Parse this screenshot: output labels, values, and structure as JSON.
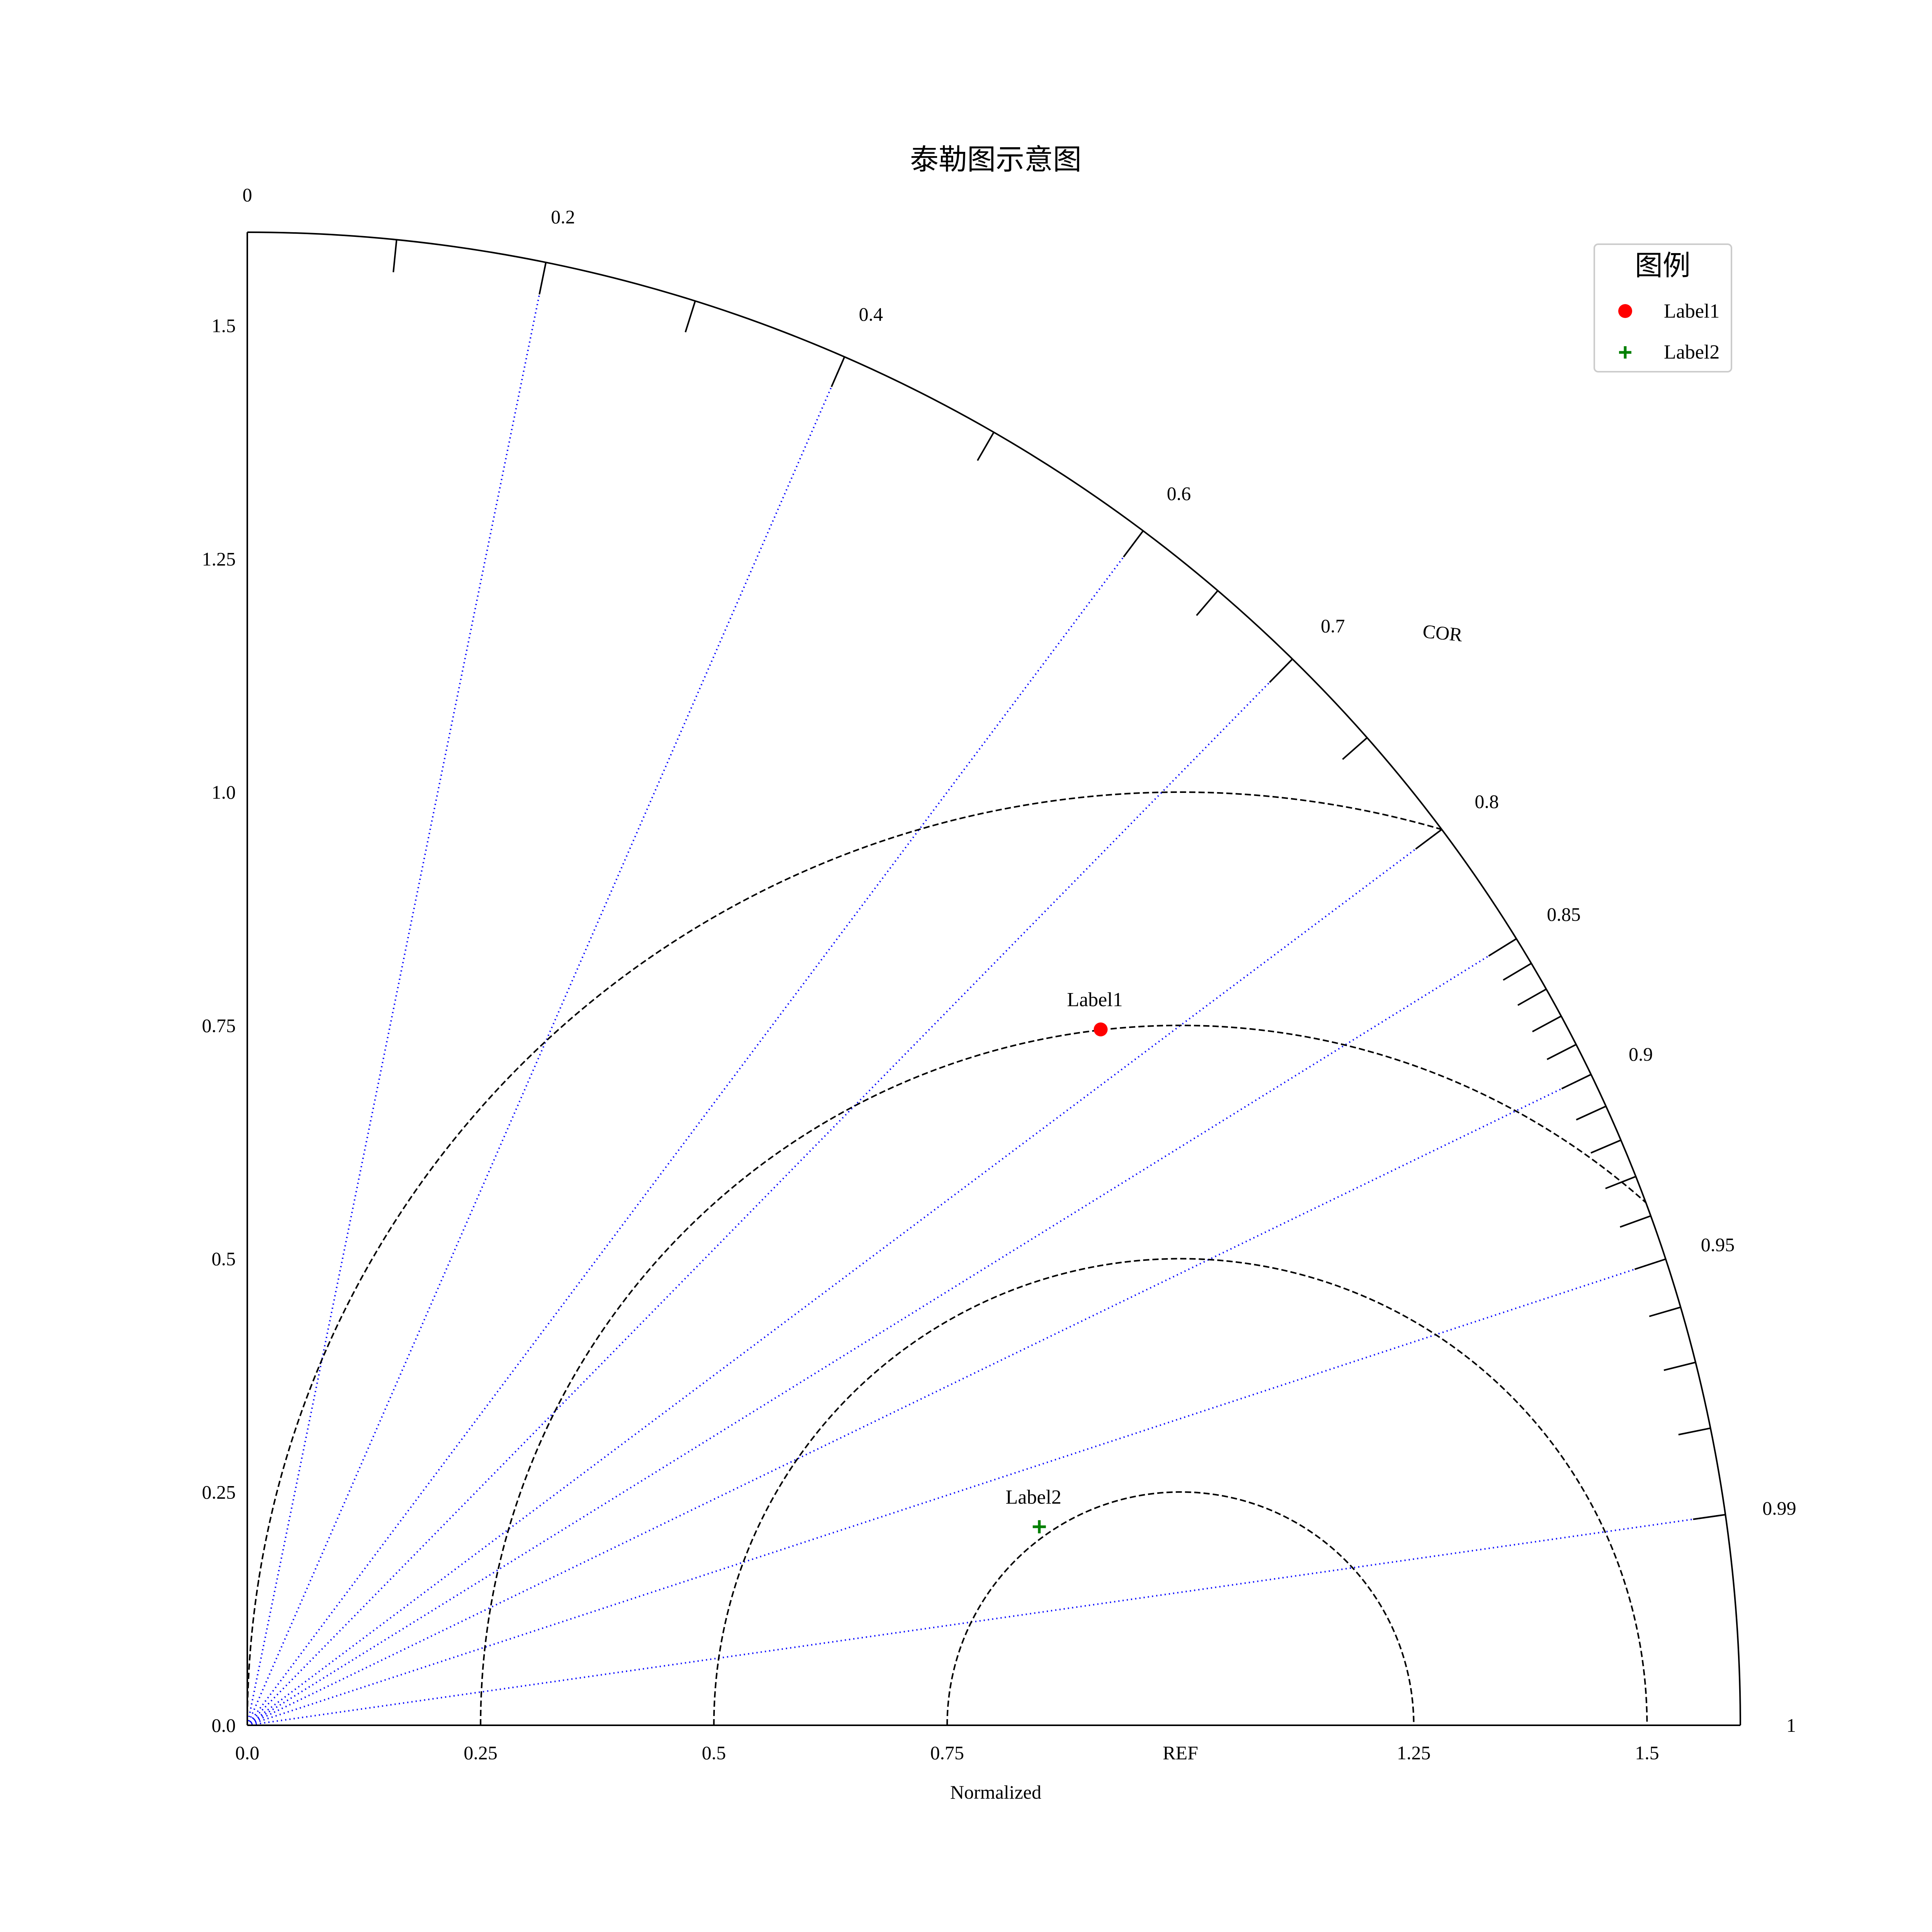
{
  "chart_data": {
    "type": "scatter",
    "subtype": "taylor-diagram",
    "title": "泰勒图示意图",
    "xlabel": "Normalized",
    "angle_label": "COR",
    "ref_label": "REF",
    "ref_std": 1.0,
    "std_max": 1.6,
    "std_ticks": [
      0.0,
      0.25,
      0.5,
      0.75,
      1.25,
      1.5
    ],
    "std_tick_labels": [
      "0.0",
      "0.25",
      "0.5",
      "0.75",
      "1.25",
      "1.5"
    ],
    "y_ticks": [
      0.0,
      0.25,
      0.5,
      0.75,
      1.0,
      1.25,
      1.5
    ],
    "y_tick_labels": [
      "0.0",
      "0.25",
      "0.5",
      "0.75",
      "1.0",
      "1.25",
      "1.5"
    ],
    "cor_endpoints": [
      {
        "value": 0,
        "label": "0"
      },
      {
        "value": 1,
        "label": "1"
      }
    ],
    "cor_labeled_ticks": [
      0.2,
      0.4,
      0.6,
      0.7,
      0.8,
      0.85,
      0.9,
      0.95,
      0.99
    ],
    "cor_tick_labels": [
      "0.2",
      "0.4",
      "0.6",
      "0.7",
      "0.8",
      "0.85",
      "0.9",
      "0.95",
      "0.99"
    ],
    "cor_minor_ticks": [
      0.1,
      0.3,
      0.5,
      0.65,
      0.75,
      0.86,
      0.87,
      0.88,
      0.89,
      0.91,
      0.92,
      0.93,
      0.94,
      0.96,
      0.97,
      0.98
    ],
    "cor_lines": [
      0.2,
      0.4,
      0.6,
      0.7,
      0.8,
      0.85,
      0.9,
      0.95,
      0.99
    ],
    "rms_circles": [
      0.25,
      0.5,
      0.75,
      1.0
    ],
    "series": [
      {
        "name": "Label1",
        "cor": 0.775,
        "std": 1.18,
        "marker": "circle",
        "color": "#ff0000"
      },
      {
        "name": "Label2",
        "cor": 0.97,
        "std": 0.875,
        "marker": "plus",
        "color": "#008000"
      }
    ],
    "legend": {
      "title": "图例",
      "position": "top-right"
    },
    "colors": {
      "axis": "#000000",
      "cor_line": "#0000ff",
      "rms_circle": "#000000"
    },
    "grid": false
  }
}
